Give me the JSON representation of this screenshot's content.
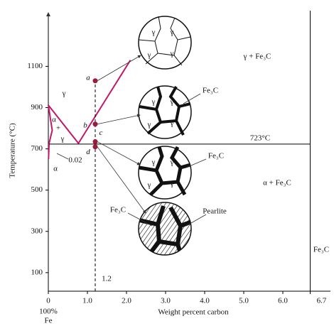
{
  "chart_data": {
    "type": "phase-diagram",
    "xlabel": "Weight percent carbon",
    "ylabel": "Temperature (°C)",
    "x_sublabels": [
      "100%",
      "Fe"
    ],
    "xlim": [
      0,
      6.7
    ],
    "ylim": [
      10,
      1370
    ],
    "xticks": [
      0,
      {
        "value": 1,
        "label": "1.0"
      },
      {
        "value": 2,
        "label": "2.0"
      },
      {
        "value": 3,
        "label": "3.0"
      },
      {
        "value": 4,
        "label": "4.0"
      },
      {
        "value": 5,
        "label": "5.0"
      },
      {
        "value": 6,
        "label": "6.0"
      },
      6.7
    ],
    "yticks": [
      100,
      300,
      500,
      700,
      900,
      1100
    ],
    "lines": [
      {
        "color": "#c2186b",
        "x": [
          0,
          0.77,
          2.1
        ],
        "y": [
          912,
          727,
          1130
        ]
      },
      {
        "color": "#c2186b",
        "x": [
          0,
          0.1,
          0.02,
          0.005
        ],
        "y": [
          912,
          790,
          727,
          650
        ]
      },
      {
        "color": "#000000",
        "x": [
          0.02,
          6.7
        ],
        "y": [
          723,
          723
        ]
      },
      {
        "color": "#000000",
        "x": [
          6.7,
          6.7
        ],
        "y": [
          10,
          1370
        ]
      },
      {
        "color": "#000000",
        "dashed": true,
        "x": [
          1.2,
          1.2
        ],
        "y": [
          10,
          1030
        ]
      }
    ],
    "points": {
      "color": "#9b1b3b",
      "labels": [
        "a",
        "b",
        "c",
        "d"
      ],
      "x": [
        1.2,
        1.2,
        1.2,
        1.2
      ],
      "y": [
        1030,
        820,
        735,
        710
      ]
    },
    "annotations": [
      "γ",
      "α",
      "+",
      "γ",
      "0.02",
      "α",
      "γ + Fe₃C",
      "723°C",
      "α + Fe₃C",
      "Fe₃C",
      "Fe₃C",
      "Fe₃C",
      "Fe₃C",
      "Pearlite",
      "1.2"
    ],
    "microstructures": [
      {
        "labels": [
          "γ",
          "γ",
          "γ",
          "γ"
        ]
      },
      {
        "labels": [
          "γ",
          "γ",
          "γ",
          "γ"
        ]
      },
      {
        "labels": [
          "γ",
          "γ",
          "γ",
          "γ"
        ]
      }
    ]
  }
}
